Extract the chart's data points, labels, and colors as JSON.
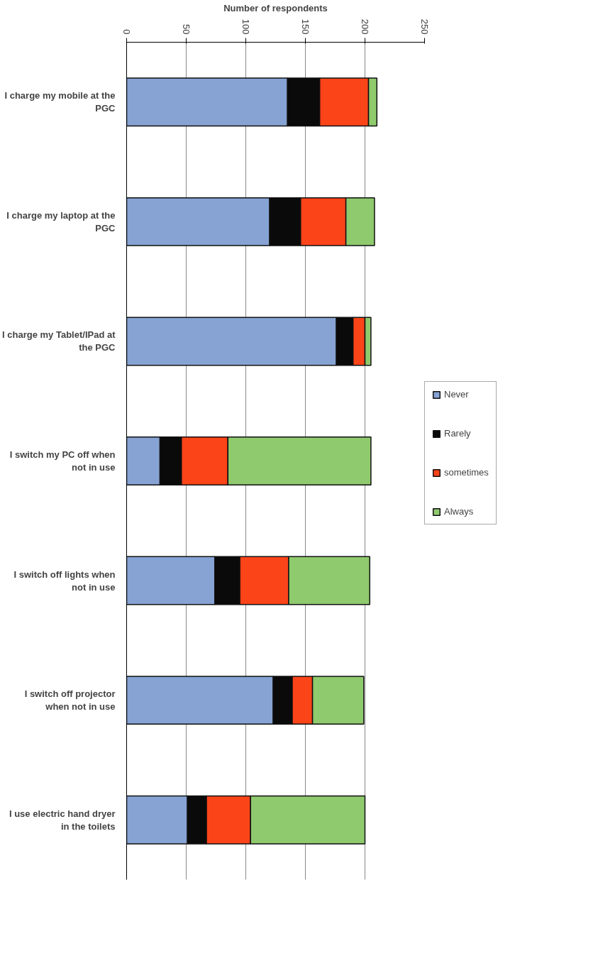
{
  "chart_data": {
    "type": "bar",
    "orientation": "horizontal",
    "stacked": true,
    "xlabel": "Number of respondents",
    "categories": [
      "I charge my mobile at the PGC",
      "I charge my laptop at the PGC",
      "I charge my Tablet/IPad at the PGC",
      "I switch my PC off when not in use",
      "I switch off lights when not in use",
      "I switch off projector when not in use",
      "I use electric hand dryer in the toilets"
    ],
    "series": [
      {
        "name": "Never",
        "color": "#86a3d3",
        "values": [
          135,
          120,
          176,
          28,
          74,
          123,
          51
        ]
      },
      {
        "name": "Rarely",
        "color": "#0a0a0a",
        "values": [
          27,
          26,
          14,
          18,
          21,
          16,
          16
        ]
      },
      {
        "name": "sometimes",
        "color": "#fc4419",
        "values": [
          41,
          38,
          10,
          39,
          41,
          17,
          37
        ]
      },
      {
        "name": "Always",
        "color": "#8fca6e",
        "values": [
          7,
          24,
          5,
          120,
          68,
          43,
          96
        ]
      }
    ],
    "xlim": [
      0,
      250
    ],
    "xticks": [
      0,
      50,
      100,
      150,
      200,
      250
    ],
    "grid": "x",
    "legend": "right"
  }
}
